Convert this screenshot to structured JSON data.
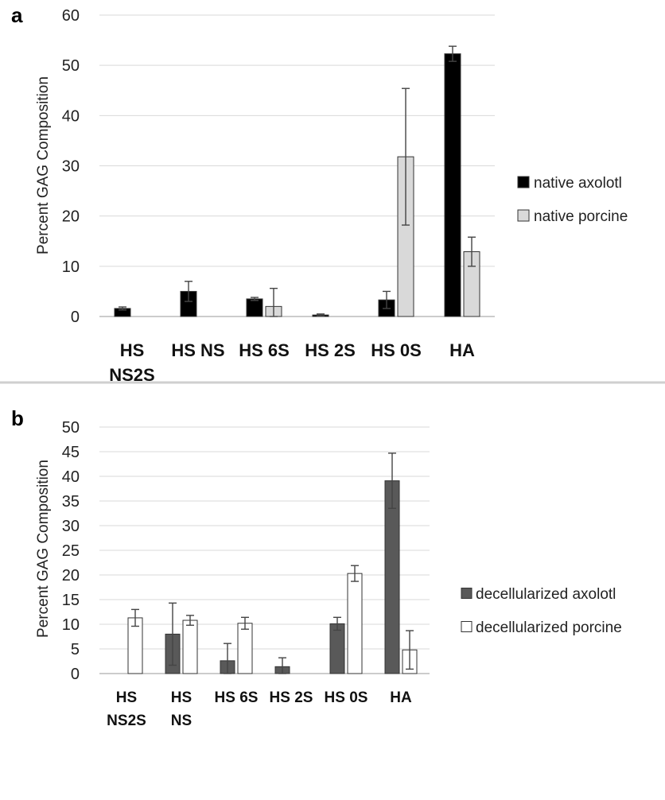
{
  "chart_data": [
    {
      "panel": "a",
      "type": "bar",
      "ylabel": "Percent GAG Composition",
      "ylim": [
        0,
        60
      ],
      "yticks": [
        0,
        10,
        20,
        30,
        40,
        50,
        60
      ],
      "grid": true,
      "legend_position": "right",
      "categories": [
        [
          "HS",
          "NS2S"
        ],
        [
          "HS NS"
        ],
        [
          "HS 6S"
        ],
        [
          "HS 2S"
        ],
        [
          "HS 0S"
        ],
        [
          "HA"
        ]
      ],
      "series": [
        {
          "name": "native axolotl",
          "color": "#000000",
          "values": [
            1.6,
            5.0,
            3.5,
            0.3,
            3.3,
            52.3
          ],
          "errors": [
            0.3,
            2.0,
            0.3,
            0.2,
            1.7,
            1.5
          ]
        },
        {
          "name": "native porcine",
          "color": "#d9d9d9",
          "values": [
            0,
            0,
            2.0,
            0,
            31.8,
            12.9
          ],
          "errors": [
            0,
            0,
            3.6,
            0,
            13.6,
            2.9
          ]
        }
      ]
    },
    {
      "panel": "b",
      "type": "bar",
      "ylabel": "Percent GAG Composition",
      "ylim": [
        0,
        50
      ],
      "yticks": [
        0,
        5,
        10,
        15,
        20,
        25,
        30,
        35,
        40,
        45,
        50
      ],
      "grid": true,
      "legend_position": "right",
      "categories": [
        [
          "HS",
          "NS2S"
        ],
        [
          "HS",
          "NS"
        ],
        [
          "HS 6S"
        ],
        [
          "HS 2S"
        ],
        [
          "HS 0S"
        ],
        [
          "HA"
        ]
      ],
      "series": [
        {
          "name": "decellularized axolotl",
          "color": "#595959",
          "values": [
            0,
            8.0,
            2.6,
            1.4,
            10.1,
            39.1
          ],
          "errors": [
            0,
            6.3,
            3.5,
            1.8,
            1.3,
            5.6
          ]
        },
        {
          "name": "decellularized porcine",
          "color": "#ffffff",
          "values": [
            11.3,
            10.8,
            10.2,
            0,
            20.3,
            4.8
          ],
          "errors": [
            1.7,
            1.0,
            1.2,
            0,
            1.6,
            3.9
          ]
        }
      ]
    }
  ]
}
